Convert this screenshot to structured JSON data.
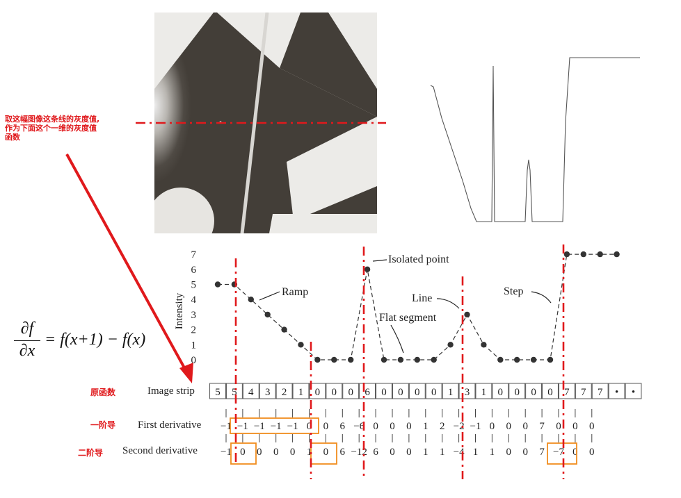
{
  "annotation": {
    "lines": [
      "取这幅图像这条线的灰度值,",
      "作为下面这个一维的灰度值",
      "函数"
    ],
    "color": "#e0191c"
  },
  "formula": {
    "numerator": "∂f",
    "denominator": "∂x",
    "rhs": "= f(x+1) − f(x)"
  },
  "graph": {
    "y_axis_label": "Intensity",
    "y_ticks": [
      "0",
      "1",
      "2",
      "3",
      "4",
      "5",
      "6",
      "7"
    ],
    "intensities": [
      5,
      5,
      4,
      3,
      2,
      1,
      0,
      0,
      0,
      6,
      0,
      0,
      0,
      0,
      1,
      3,
      1,
      0,
      0,
      0,
      0,
      7,
      7,
      7,
      7
    ],
    "annotations": {
      "isolated_point": "Isolated point",
      "ramp": "Ramp",
      "line": "Line",
      "flat_segment": "Flat segment",
      "step": "Step"
    }
  },
  "rows": {
    "original_cn": "原函数",
    "first_cn": "一阶导",
    "second_cn": "二阶导",
    "image_strip_label": "Image strip",
    "first_derivative_label": "First derivative",
    "second_derivative_label": "Second derivative",
    "image_strip": [
      "5",
      "5",
      "4",
      "3",
      "2",
      "1",
      "0",
      "0",
      "0",
      "6",
      "0",
      "0",
      "0",
      "0",
      "1",
      "3",
      "1",
      "0",
      "0",
      "0",
      "0",
      "7",
      "7",
      "7",
      "•",
      "•"
    ],
    "first_derivative": [
      "−1",
      "−1",
      "−1",
      "−1",
      "−1",
      "0",
      "0",
      "6",
      "−6",
      "0",
      "0",
      "0",
      "1",
      "2",
      "−2",
      "−1",
      "0",
      "0",
      "0",
      "7",
      "0",
      "0",
      "0"
    ],
    "second_derivative": [
      "−1",
      "0",
      "0",
      "0",
      "0",
      "1",
      "0",
      "6",
      "−12",
      "6",
      "0",
      "0",
      "1",
      "1",
      "−4",
      "1",
      "1",
      "0",
      "0",
      "7",
      "−7",
      "0",
      "0"
    ]
  },
  "colors": {
    "accent_red": "#e0191c",
    "highlight_orange": "#f08c1e",
    "graph_gray": "#333333"
  }
}
